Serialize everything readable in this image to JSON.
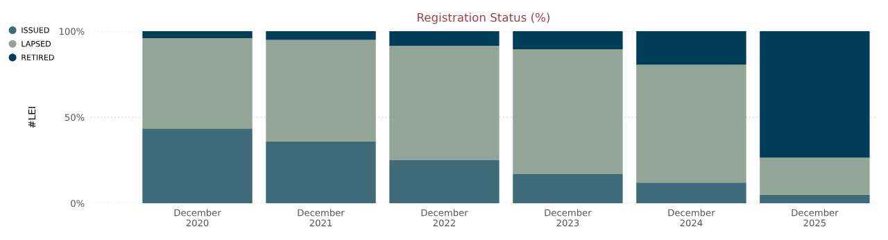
{
  "chart_data": {
    "type": "bar",
    "title": "Registration Status (%)",
    "ylabel": "#LEI",
    "categories": [
      "December\n2020",
      "December\n2021",
      "December\n2022",
      "December\n2023",
      "December\n2024",
      "December\n2025"
    ],
    "series": [
      {
        "name": "ISSUED",
        "color": "#3f6b78",
        "values": [
          43.5,
          36,
          25,
          17,
          12,
          5
        ]
      },
      {
        "name": "LAPSED",
        "color": "#92a596",
        "values": [
          52.5,
          59,
          66.5,
          72.5,
          68.5,
          21.5
        ]
      },
      {
        "name": "RETIRED",
        "color": "#003d5b",
        "values": [
          4,
          5,
          8.5,
          10.5,
          19.5,
          73.5
        ]
      }
    ],
    "stacked": true,
    "ylim": [
      0,
      100
    ],
    "yticks": [
      {
        "value": 0,
        "label": "0%"
      },
      {
        "value": 50,
        "label": "50%"
      },
      {
        "value": 100,
        "label": "100%"
      }
    ],
    "grid": "y",
    "legend": "left"
  }
}
